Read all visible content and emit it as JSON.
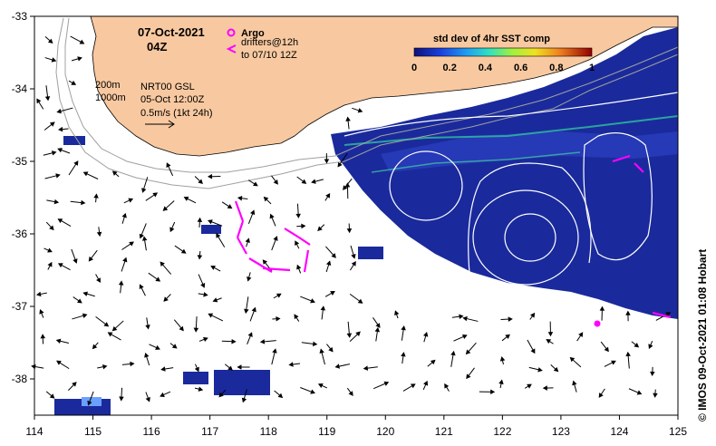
{
  "header": {
    "date": "07-Oct-2021",
    "time": "04Z"
  },
  "legend": {
    "argo_label": "Argo",
    "drifters_line1": "drifters@12h",
    "drifters_line2": "to 07/10 12Z",
    "argo_color": "#ff00ff",
    "drifter_color": "#ff00ff"
  },
  "depth_labels": {
    "d200": "200m",
    "d1000": "1000m"
  },
  "product": {
    "name": "NRT00 GSL",
    "analysis_time": "05-Oct 12:00Z",
    "scale_label": "0.5m/s (1kt 24h)"
  },
  "colorbar": {
    "title": "std dev of 4hr SST comp",
    "ticks": [
      "0",
      "0.2",
      "0.4",
      "0.6",
      "0.8",
      "1"
    ]
  },
  "axes": {
    "x_ticks": [
      "114",
      "115",
      "116",
      "117",
      "118",
      "119",
      "120",
      "121",
      "122",
      "123",
      "124",
      "125"
    ],
    "y_ticks": [
      "-33",
      "-34",
      "-35",
      "-36",
      "-37",
      "-38"
    ]
  },
  "credit": "© IMOS 09-Oct-2021 01:08 Hobart",
  "colors": {
    "land": "#f8c9a0",
    "sst_dark": "#1a2a9c",
    "sst_mid": "#2a40c8",
    "contour": "#ffffff",
    "isobath": "#a0a0a0"
  }
}
